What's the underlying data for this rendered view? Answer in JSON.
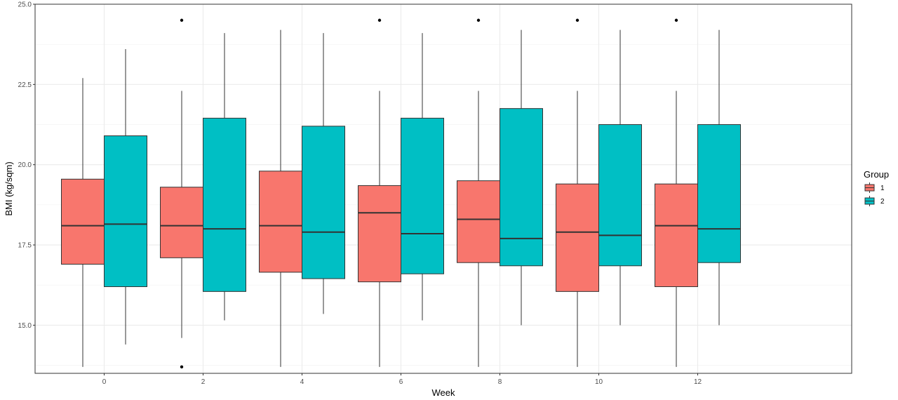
{
  "chart_data": {
    "type": "box",
    "xlabel": "Week",
    "ylabel": "BMI (kg/sqm)",
    "x_categories": [
      "0",
      "2",
      "4",
      "6",
      "8",
      "10",
      "12"
    ],
    "y_ticks": [
      "15.0",
      "17.5",
      "20.0",
      "22.5",
      "25.0"
    ],
    "ylim": [
      13.5,
      25.0
    ],
    "grid": true,
    "legend": {
      "title": "Group",
      "position": "right",
      "entries": [
        {
          "label": "1",
          "color": "#F8766D"
        },
        {
          "label": "2",
          "color": "#00BFC4"
        }
      ]
    },
    "series": [
      {
        "name": "1",
        "color": "#F8766D",
        "boxes": [
          {
            "week": "0",
            "min": 13.7,
            "q1": 16.9,
            "median": 18.1,
            "q3": 19.55,
            "max": 22.7,
            "outliers": []
          },
          {
            "week": "2",
            "min": 14.6,
            "q1": 17.1,
            "median": 18.1,
            "q3": 19.3,
            "max": 22.3,
            "outliers": [
              24.5,
              13.7
            ]
          },
          {
            "week": "4",
            "min": 13.7,
            "q1": 16.65,
            "median": 18.1,
            "q3": 19.8,
            "max": 24.2,
            "outliers": []
          },
          {
            "week": "6",
            "min": 13.7,
            "q1": 16.35,
            "median": 18.5,
            "q3": 19.35,
            "max": 22.3,
            "outliers": [
              24.5
            ]
          },
          {
            "week": "8",
            "min": 13.7,
            "q1": 16.95,
            "median": 18.3,
            "q3": 19.5,
            "max": 22.3,
            "outliers": [
              24.5
            ]
          },
          {
            "week": "10",
            "min": 13.7,
            "q1": 16.05,
            "median": 17.9,
            "q3": 19.4,
            "max": 22.3,
            "outliers": [
              24.5
            ]
          },
          {
            "week": "12",
            "min": 13.7,
            "q1": 16.2,
            "median": 18.1,
            "q3": 19.4,
            "max": 22.3,
            "outliers": [
              24.5
            ]
          }
        ]
      },
      {
        "name": "2",
        "color": "#00BFC4",
        "boxes": [
          {
            "week": "0",
            "min": 14.4,
            "q1": 16.2,
            "median": 18.15,
            "q3": 20.9,
            "max": 23.6,
            "outliers": []
          },
          {
            "week": "2",
            "min": 15.15,
            "q1": 16.05,
            "median": 18.0,
            "q3": 21.45,
            "max": 24.1,
            "outliers": []
          },
          {
            "week": "4",
            "min": 15.35,
            "q1": 16.45,
            "median": 17.9,
            "q3": 21.2,
            "max": 24.1,
            "outliers": []
          },
          {
            "week": "6",
            "min": 15.15,
            "q1": 16.6,
            "median": 17.85,
            "q3": 21.45,
            "max": 24.1,
            "outliers": []
          },
          {
            "week": "8",
            "min": 15.0,
            "q1": 16.85,
            "median": 17.7,
            "q3": 21.75,
            "max": 24.2,
            "outliers": []
          },
          {
            "week": "10",
            "min": 15.0,
            "q1": 16.85,
            "median": 17.8,
            "q3": 21.25,
            "max": 24.2,
            "outliers": []
          },
          {
            "week": "12",
            "min": 15.0,
            "q1": 16.95,
            "median": 18.0,
            "q3": 21.25,
            "max": 24.2,
            "outliers": []
          }
        ]
      }
    ]
  }
}
